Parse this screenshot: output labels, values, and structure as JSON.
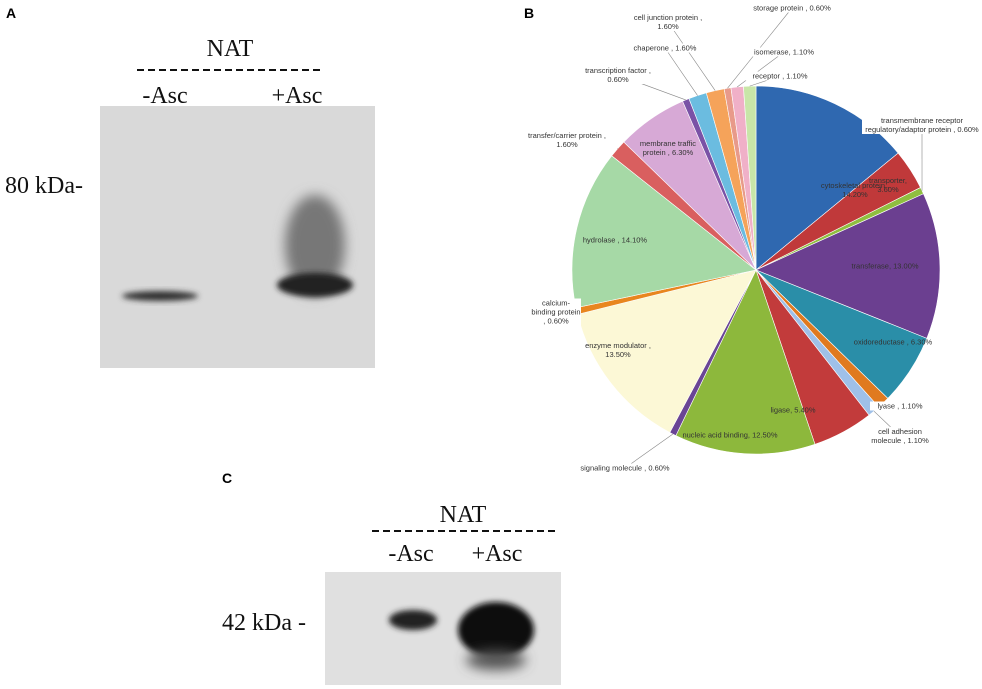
{
  "panels": {
    "a": {
      "label": "A",
      "header": "NAT",
      "lanes": [
        "-Asc",
        "+Asc"
      ],
      "marker": "80 kDa-"
    },
    "b": {
      "label": "B"
    },
    "c": {
      "label": "C",
      "header": "NAT",
      "lanes": [
        "-Asc",
        "+Asc"
      ],
      "marker": "42 kDa -"
    }
  },
  "chart_data": {
    "type": "pie",
    "values": [
      14.2,
      3.6,
      0.6,
      13.0,
      6.3,
      1.1,
      1.1,
      5.4,
      12.5,
      0.6,
      13.5,
      0.6,
      14.1,
      1.6,
      6.3,
      0.6,
      1.6,
      1.6,
      0.6,
      1.1,
      1.1
    ],
    "value_labels": [
      "cytoskeletal protein , 14.20%",
      "transporter, 3.60%",
      "transmembrane receptor regulatory/adaptor protein , 0.60%",
      "transferase, 13.00%",
      "oxidoreductase , 6.30%",
      "lyase , 1.10%",
      "cell adhesion molecule , 1.10%",
      "ligase, 5.40%",
      "nucleic acid binding, 12.50%",
      "signaling molecule , 0.60%",
      "enzyme modulator , 13.50%",
      "calcium-binding protein , 0.60%",
      "hydrolase , 14.10%",
      "transfer/carrier protein , 1.60%",
      "membrane traffic protein , 6.30%",
      "transcription factor , 0.60%",
      "chaperone , 1.60%",
      "cell junction protein , 1.60%",
      "storage protein , 0.60%",
      "isomerase, 1.10%",
      "receptor , 1.10%"
    ],
    "colors": [
      "#2f68b0",
      "#c0393a",
      "#8fbf3f",
      "#6b3f90",
      "#2a8ea8",
      "#e07a1f",
      "#9fc0e8",
      "#c23b3b",
      "#8db83c",
      "#6a4595",
      "#fcf8d6",
      "#e8861f",
      "#a6d9a6",
      "#d95f5f",
      "#d7a9d6",
      "#7a52a6",
      "#6bbce0",
      "#f5a35a",
      "#e89a8a",
      "#f0b0c8",
      "#c8e6a8"
    ]
  }
}
